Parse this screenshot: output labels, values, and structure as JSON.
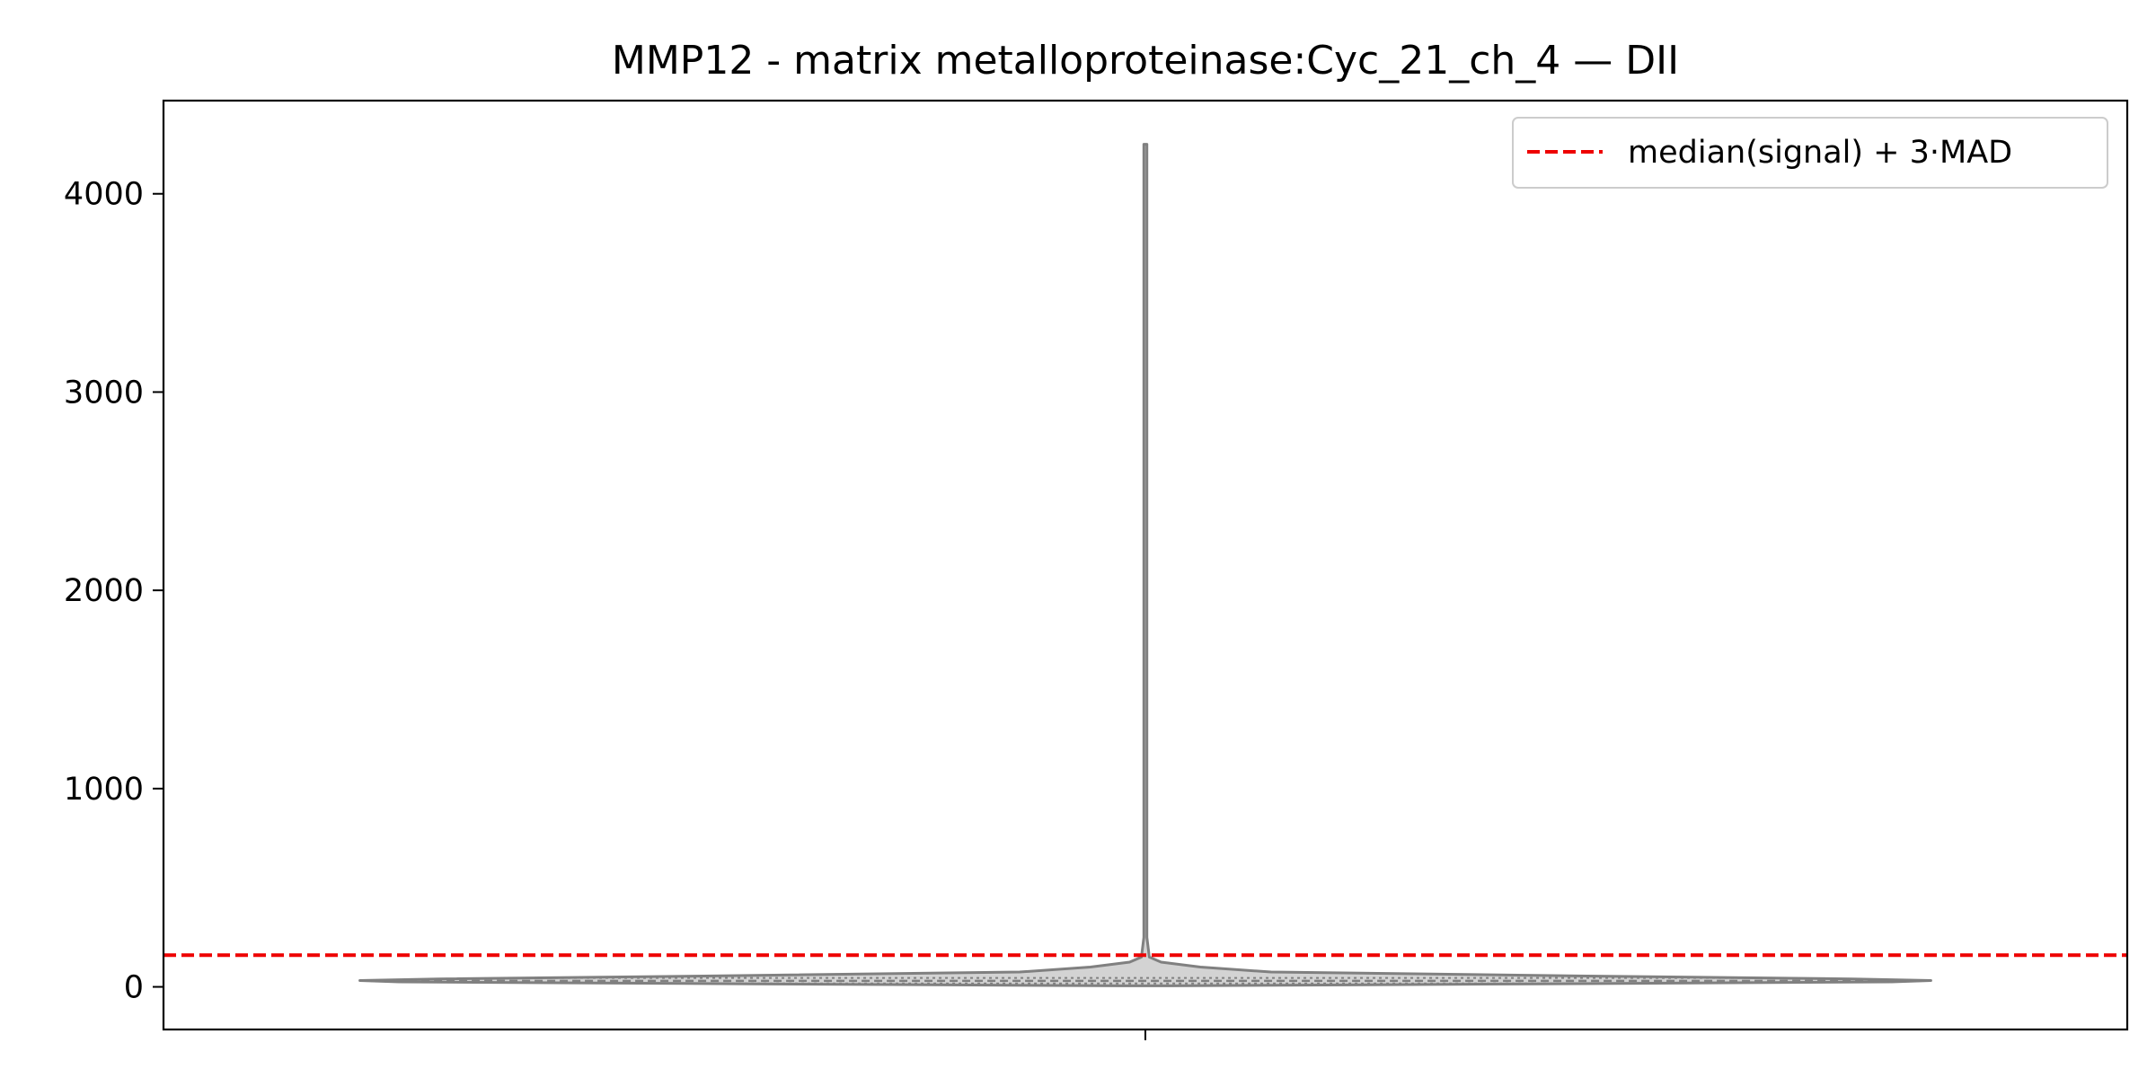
{
  "chart_data": {
    "type": "violin",
    "title": "MMP12 - matrix metalloproteinase:Cyc_21_ch_4 — DII",
    "xlabel": "",
    "ylabel": "",
    "ylim": [
      -215,
      4470
    ],
    "yticks": [
      0,
      1000,
      2000,
      3000,
      4000
    ],
    "ytick_labels": [
      "0",
      "1000",
      "2000",
      "3000",
      "4000"
    ],
    "xticks": [
      ""
    ],
    "grid": false,
    "series": [
      {
        "name": "signal",
        "min": 5,
        "max": 4250,
        "quartiles": [
          17,
          30,
          45
        ],
        "density_profile": [
          [
            5,
            0.03
          ],
          [
            15,
            0.5
          ],
          [
            25,
            0.95
          ],
          [
            32,
            1.0
          ],
          [
            40,
            0.9
          ],
          [
            55,
            0.55
          ],
          [
            75,
            0.16
          ],
          [
            100,
            0.07
          ],
          [
            125,
            0.02
          ],
          [
            150,
            0.005
          ],
          [
            250,
            0.002
          ],
          [
            4250,
            0.002
          ]
        ],
        "fill_color": "#d3d3d3",
        "edge_color": "#808080"
      }
    ],
    "threshold": {
      "value": 160,
      "label": "median(signal) + 3·MAD",
      "color": "#ee0000",
      "linestyle": "dashed"
    },
    "legend": {
      "position": "upper right",
      "entries": [
        "median(signal) + 3·MAD"
      ]
    }
  }
}
